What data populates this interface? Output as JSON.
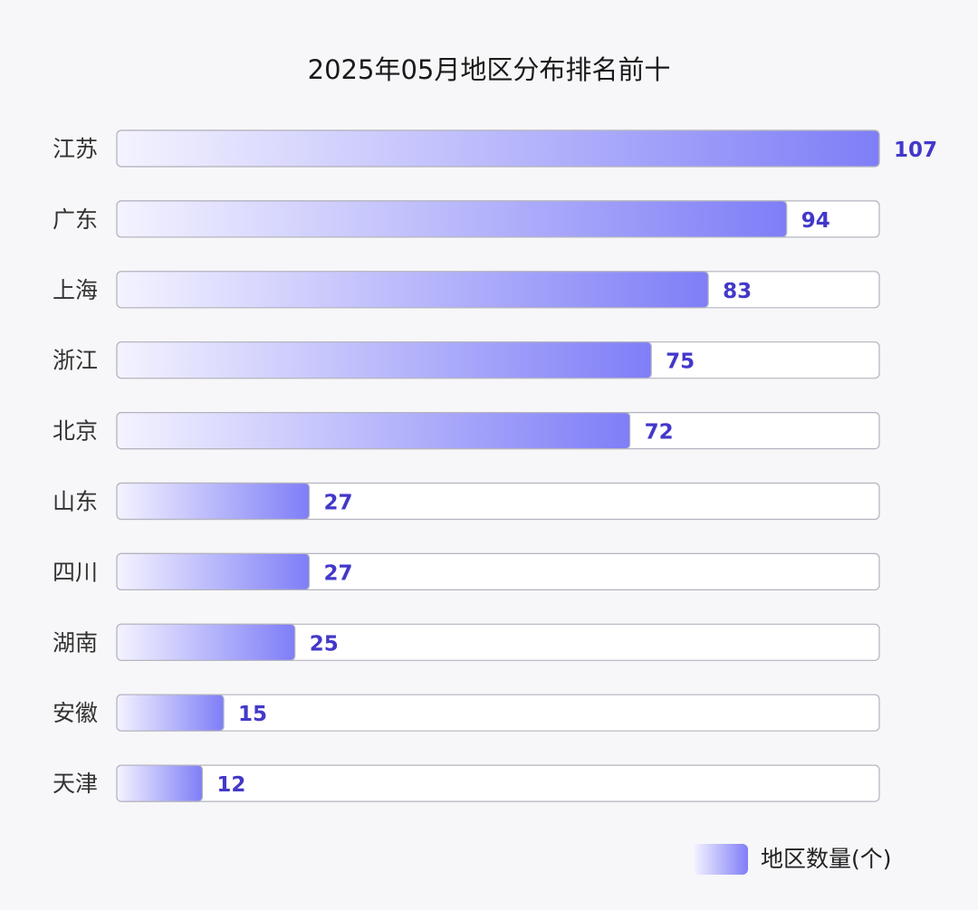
{
  "chart_data": {
    "type": "bar",
    "orientation": "horizontal",
    "title": "2025年05月地区分布排名前十",
    "categories": [
      "江苏",
      "广东",
      "上海",
      "浙江",
      "北京",
      "山东",
      "四川",
      "湖南",
      "安徽",
      "天津"
    ],
    "series": [
      {
        "name": "地区数量(个)",
        "values": [
          107,
          94,
          83,
          75,
          72,
          27,
          27,
          25,
          15,
          12
        ]
      }
    ],
    "xlim": [
      0,
      107
    ],
    "grid": false,
    "data_labels": true,
    "legend_position": "bottom-right"
  },
  "colors": {
    "bar_start": "#f4f3ff",
    "bar_end": "#7f7ef7",
    "label": "#4338c9",
    "track_border": "#b4b4c0",
    "track_fill": "#ffffff"
  }
}
